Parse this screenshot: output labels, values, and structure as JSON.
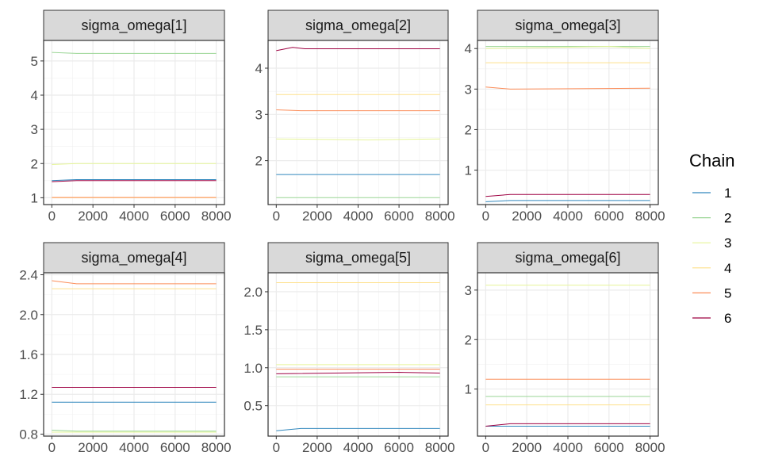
{
  "chart_data": {
    "type": "line",
    "subtype": "mcmc-trace-facets",
    "legend": {
      "title": "Chain",
      "placement": "right",
      "entries": [
        "1",
        "2",
        "3",
        "4",
        "5",
        "6"
      ]
    },
    "chain_colors": [
      "#3288BD",
      "#99D594",
      "#E6F598",
      "#FEE08B",
      "#FC8D59",
      "#9E0142"
    ],
    "x_ticks": [
      0,
      2000,
      4000,
      6000,
      8000
    ],
    "x_tick_labels": [
      "0",
      "2000",
      "4000",
      "6000",
      "8000"
    ],
    "xlim": [
      -400,
      8400
    ],
    "grid": true,
    "panels": [
      {
        "title": "sigma_omega[1]",
        "ylim": [
          0.8,
          5.6
        ],
        "y_ticks": [
          1,
          2,
          3,
          4,
          5
        ],
        "y_tick_labels": [
          "1",
          "2",
          "3",
          "4",
          "5"
        ],
        "series": [
          {
            "chain": "1",
            "points": [
              [
                0,
                1.5
              ],
              [
                1200,
                1.53
              ],
              [
                8000,
                1.53
              ]
            ]
          },
          {
            "chain": "2",
            "points": [
              [
                0,
                5.25
              ],
              [
                1200,
                5.22
              ],
              [
                8000,
                5.22
              ]
            ]
          },
          {
            "chain": "3",
            "points": [
              [
                0,
                1.97
              ],
              [
                1200,
                2.0
              ],
              [
                8000,
                2.0
              ]
            ]
          },
          {
            "chain": "4",
            "points": [
              [
                0,
                1.0
              ],
              [
                8000,
                1.0
              ]
            ]
          },
          {
            "chain": "5",
            "points": [
              [
                0,
                1.01
              ],
              [
                8000,
                1.01
              ]
            ]
          },
          {
            "chain": "6",
            "points": [
              [
                0,
                1.47
              ],
              [
                1200,
                1.5
              ],
              [
                8000,
                1.5
              ]
            ]
          }
        ]
      },
      {
        "title": "sigma_omega[2]",
        "ylim": [
          1.05,
          4.6
        ],
        "y_ticks": [
          2,
          3,
          4
        ],
        "y_tick_labels": [
          "2",
          "3",
          "4"
        ],
        "series": [
          {
            "chain": "1",
            "points": [
              [
                0,
                1.7
              ],
              [
                8000,
                1.7
              ]
            ]
          },
          {
            "chain": "2",
            "points": [
              [
                0,
                1.2
              ],
              [
                8000,
                1.2
              ]
            ]
          },
          {
            "chain": "3",
            "points": [
              [
                0,
                2.47
              ],
              [
                4500,
                2.45
              ],
              [
                8000,
                2.47
              ]
            ]
          },
          {
            "chain": "4",
            "points": [
              [
                0,
                3.43
              ],
              [
                8000,
                3.43
              ]
            ]
          },
          {
            "chain": "5",
            "points": [
              [
                0,
                3.1
              ],
              [
                1200,
                3.08
              ],
              [
                8000,
                3.08
              ]
            ]
          },
          {
            "chain": "6",
            "points": [
              [
                0,
                4.38
              ],
              [
                800,
                4.45
              ],
              [
                1400,
                4.42
              ],
              [
                8000,
                4.42
              ]
            ]
          }
        ]
      },
      {
        "title": "sigma_omega[3]",
        "ylim": [
          0.15,
          4.2
        ],
        "y_ticks": [
          1,
          2,
          3,
          4
        ],
        "y_tick_labels": [
          "1",
          "2",
          "3",
          "4"
        ],
        "series": [
          {
            "chain": "1",
            "points": [
              [
                0,
                0.22
              ],
              [
                1200,
                0.25
              ],
              [
                8000,
                0.25
              ]
            ]
          },
          {
            "chain": "2",
            "points": [
              [
                0,
                4.05
              ],
              [
                8000,
                4.05
              ]
            ]
          },
          {
            "chain": "3",
            "points": [
              [
                0,
                4.0
              ],
              [
                6000,
                4.05
              ],
              [
                8000,
                4.0
              ]
            ]
          },
          {
            "chain": "4",
            "points": [
              [
                0,
                3.65
              ],
              [
                8000,
                3.65
              ]
            ]
          },
          {
            "chain": "5",
            "points": [
              [
                0,
                3.05
              ],
              [
                1200,
                3.0
              ],
              [
                8000,
                3.02
              ]
            ]
          },
          {
            "chain": "6",
            "points": [
              [
                0,
                0.35
              ],
              [
                1200,
                0.4
              ],
              [
                8000,
                0.4
              ]
            ]
          }
        ]
      },
      {
        "title": "sigma_omega[4]",
        "ylim": [
          0.78,
          2.42
        ],
        "y_ticks": [
          0.8,
          1.2,
          1.6,
          2.0,
          2.4
        ],
        "y_tick_labels": [
          "0.8",
          "1.2",
          "1.6",
          "2.0",
          "2.4"
        ],
        "series": [
          {
            "chain": "1",
            "points": [
              [
                0,
                1.12
              ],
              [
                8000,
                1.12
              ]
            ]
          },
          {
            "chain": "2",
            "points": [
              [
                0,
                0.84
              ],
              [
                1200,
                0.83
              ],
              [
                8000,
                0.83
              ]
            ]
          },
          {
            "chain": "3",
            "points": [
              [
                0,
                0.82
              ],
              [
                8000,
                0.82
              ]
            ]
          },
          {
            "chain": "4",
            "points": [
              [
                0,
                2.26
              ],
              [
                8000,
                2.26
              ]
            ]
          },
          {
            "chain": "5",
            "points": [
              [
                0,
                2.34
              ],
              [
                1200,
                2.31
              ],
              [
                8000,
                2.31
              ]
            ]
          },
          {
            "chain": "6",
            "points": [
              [
                0,
                1.27
              ],
              [
                8000,
                1.27
              ]
            ]
          }
        ]
      },
      {
        "title": "sigma_omega[5]",
        "ylim": [
          0.1,
          2.25
        ],
        "y_ticks": [
          0.5,
          1.0,
          1.5,
          2.0
        ],
        "y_tick_labels": [
          "0.5",
          "1.0",
          "1.5",
          "2.0"
        ],
        "series": [
          {
            "chain": "1",
            "points": [
              [
                0,
                0.17
              ],
              [
                1200,
                0.2
              ],
              [
                8000,
                0.2
              ]
            ]
          },
          {
            "chain": "2",
            "points": [
              [
                0,
                0.88
              ],
              [
                8000,
                0.88
              ]
            ]
          },
          {
            "chain": "3",
            "points": [
              [
                0,
                1.04
              ],
              [
                8000,
                1.04
              ]
            ]
          },
          {
            "chain": "4",
            "points": [
              [
                0,
                2.12
              ],
              [
                8000,
                2.12
              ]
            ]
          },
          {
            "chain": "5",
            "points": [
              [
                0,
                0.98
              ],
              [
                8000,
                0.98
              ]
            ]
          },
          {
            "chain": "6",
            "points": [
              [
                0,
                0.92
              ],
              [
                6000,
                0.94
              ],
              [
                8000,
                0.93
              ]
            ]
          }
        ]
      },
      {
        "title": "sigma_omega[6]",
        "ylim": [
          0.05,
          3.35
        ],
        "y_ticks": [
          1,
          2,
          3
        ],
        "y_tick_labels": [
          "1",
          "2",
          "3"
        ],
        "series": [
          {
            "chain": "1",
            "points": [
              [
                0,
                0.25
              ],
              [
                8000,
                0.25
              ]
            ]
          },
          {
            "chain": "2",
            "points": [
              [
                0,
                0.85
              ],
              [
                8000,
                0.85
              ]
            ]
          },
          {
            "chain": "3",
            "points": [
              [
                0,
                3.1
              ],
              [
                8000,
                3.1
              ]
            ]
          },
          {
            "chain": "4",
            "points": [
              [
                0,
                0.68
              ],
              [
                8000,
                0.68
              ]
            ]
          },
          {
            "chain": "5",
            "points": [
              [
                0,
                1.2
              ],
              [
                8000,
                1.2
              ]
            ]
          },
          {
            "chain": "6",
            "points": [
              [
                0,
                0.25
              ],
              [
                1200,
                0.3
              ],
              [
                8000,
                0.3
              ]
            ]
          }
        ]
      }
    ]
  }
}
